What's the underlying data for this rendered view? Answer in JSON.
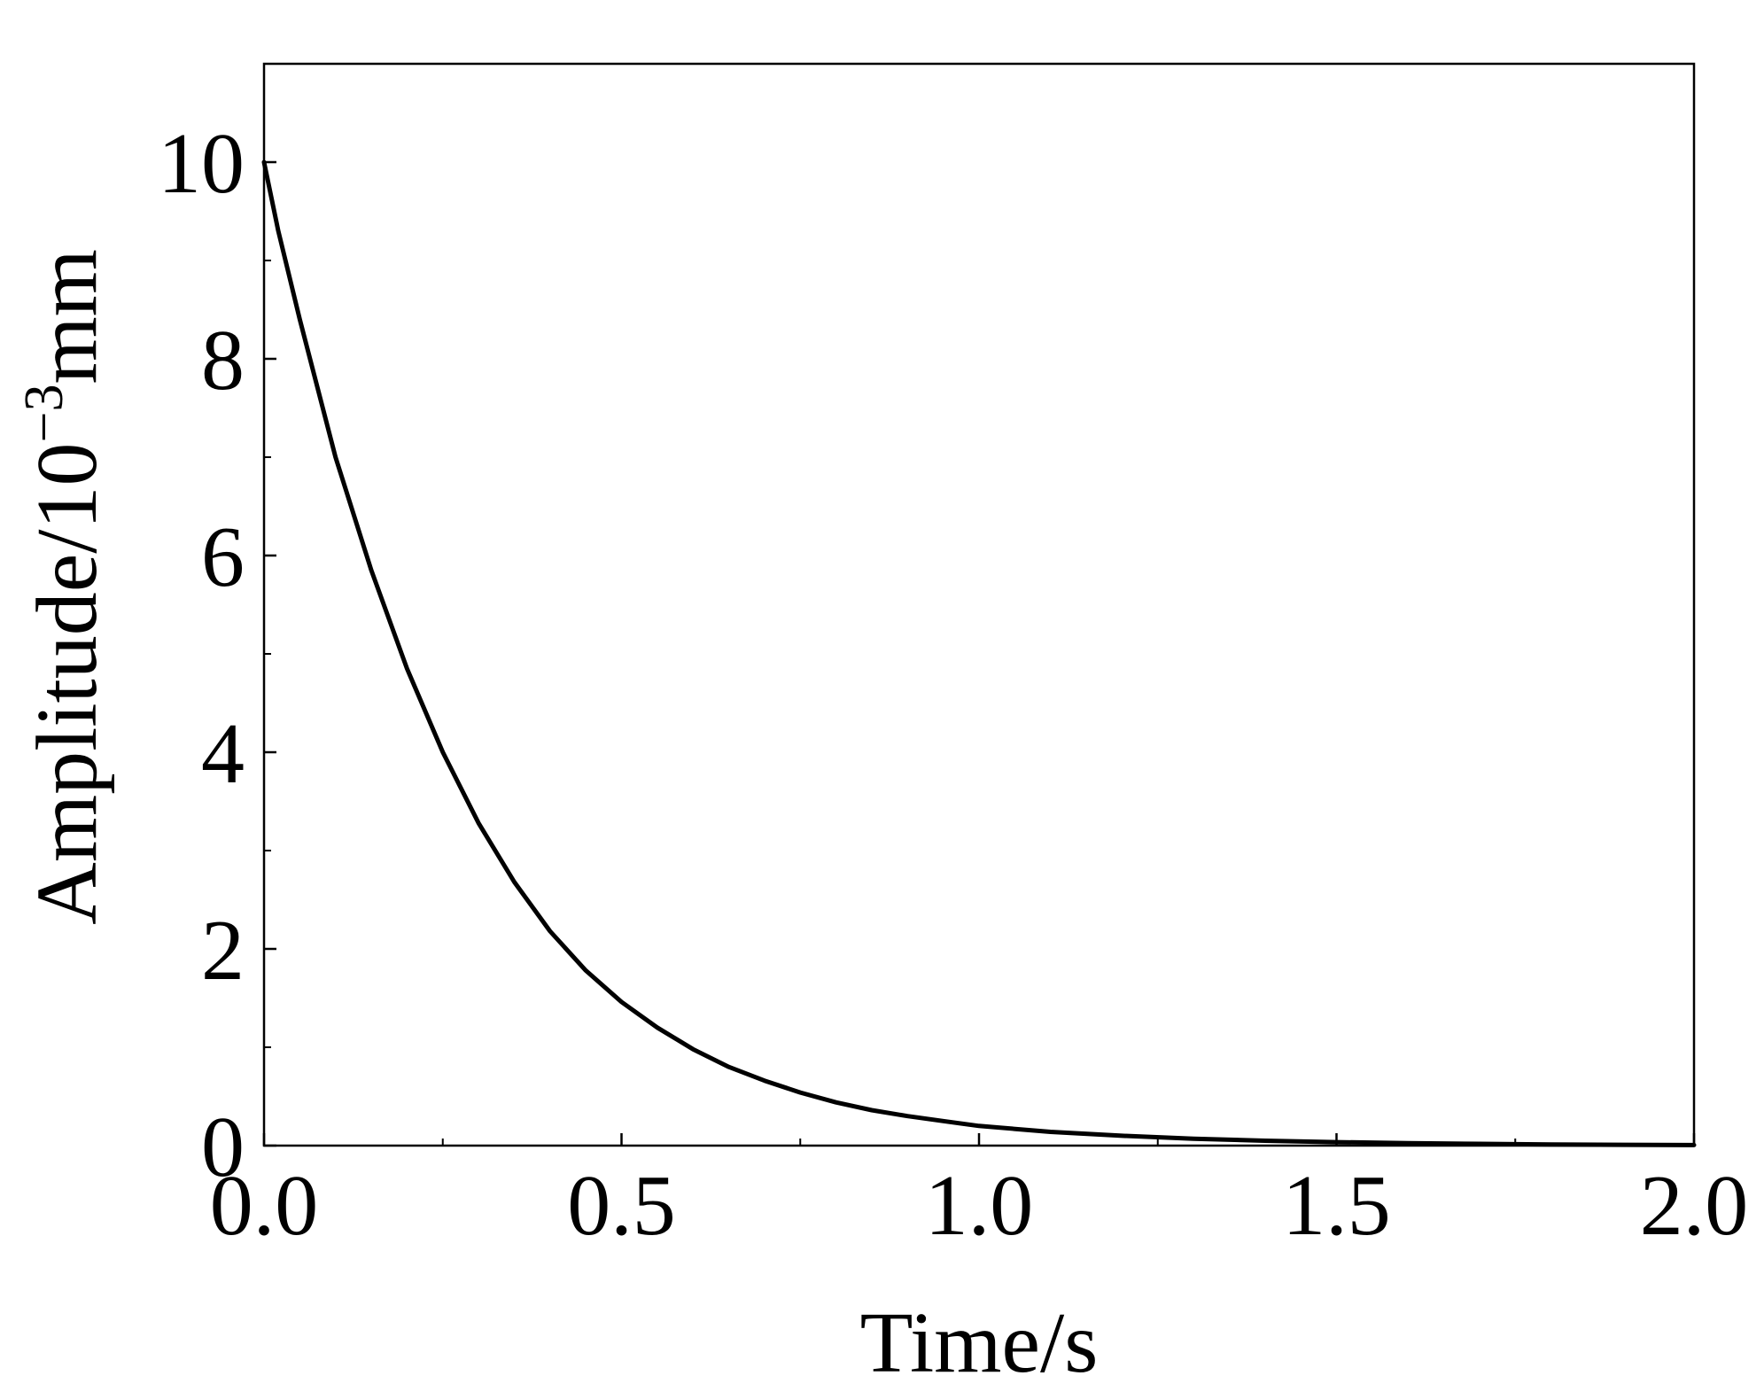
{
  "chart_data": {
    "type": "line",
    "title": "",
    "xlabel": "Time/s",
    "ylabel": {
      "main": "Amplitude/10",
      "superscript": "−3",
      "unit": "mm"
    },
    "xlim": [
      0.0,
      2.0
    ],
    "ylim": [
      0,
      11
    ],
    "x_ticks": [
      {
        "value": 0.0,
        "label": "0.0"
      },
      {
        "value": 0.5,
        "label": "0.5"
      },
      {
        "value": 1.0,
        "label": "1.0"
      },
      {
        "value": 1.5,
        "label": "1.5"
      },
      {
        "value": 2.0,
        "label": "2.0"
      }
    ],
    "y_ticks": [
      {
        "value": 0,
        "label": "0"
      },
      {
        "value": 2,
        "label": "2"
      },
      {
        "value": 4,
        "label": "4"
      },
      {
        "value": 6,
        "label": "6"
      },
      {
        "value": 8,
        "label": "8"
      },
      {
        "value": 10,
        "label": "10"
      }
    ],
    "x_minor_ticks": [
      0.25,
      0.75,
      1.25,
      1.75
    ],
    "y_minor_ticks": [
      1,
      3,
      5,
      7,
      9
    ],
    "grid": false,
    "legend": "none",
    "line_color": "#000000",
    "series": [
      {
        "x": [
          0.0,
          0.02,
          0.05,
          0.1,
          0.15,
          0.2,
          0.25,
          0.3,
          0.35,
          0.4,
          0.45,
          0.5,
          0.55,
          0.6,
          0.65,
          0.7,
          0.75,
          0.8,
          0.85,
          0.9,
          0.95,
          1.0,
          1.1,
          1.2,
          1.3,
          1.4,
          1.5,
          1.6,
          1.7,
          1.8,
          1.9,
          2.0
        ],
        "values": [
          10.0,
          9.3,
          8.4,
          7.0,
          5.85,
          4.85,
          4.0,
          3.28,
          2.68,
          2.18,
          1.78,
          1.46,
          1.2,
          0.98,
          0.8,
          0.66,
          0.54,
          0.44,
          0.36,
          0.3,
          0.25,
          0.2,
          0.14,
          0.1,
          0.07,
          0.05,
          0.035,
          0.025,
          0.018,
          0.012,
          0.008,
          0.005
        ]
      }
    ]
  }
}
